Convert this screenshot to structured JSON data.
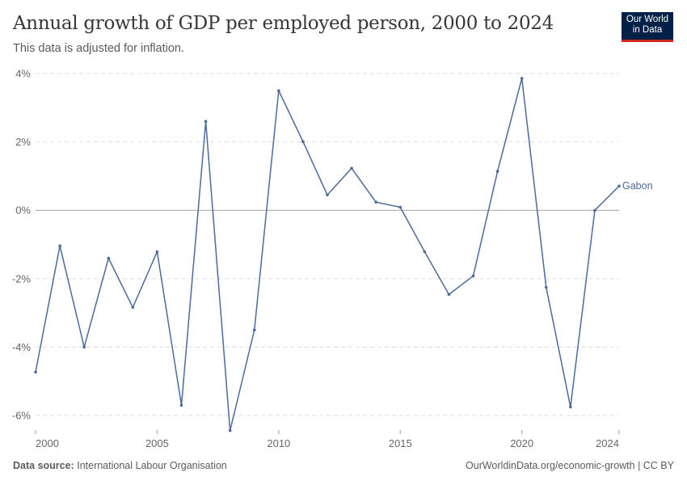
{
  "header": {
    "title": "Annual growth of GDP per employed person, 2000 to 2024",
    "subtitle": "This data is adjusted for inflation.",
    "logo": "Our World in Data"
  },
  "footer": {
    "source_label": "Data source:",
    "source": "International Labour Organisation",
    "url": "OurWorldinData.org/economic-growth | CC BY"
  },
  "chart_data": {
    "type": "line",
    "title": "Annual growth of GDP per employed person, 2000 to 2024",
    "subtitle": "This data is adjusted for inflation.",
    "xlabel": "",
    "ylabel": "",
    "xlim": [
      2000,
      2024
    ],
    "ylim": [
      -6.4,
      4
    ],
    "x_ticks": [
      2000,
      2005,
      2010,
      2015,
      2020,
      2024
    ],
    "y_ticks": [
      {
        "v": 4,
        "label": "4%"
      },
      {
        "v": 2,
        "label": "2%"
      },
      {
        "v": 0,
        "label": "0%"
      },
      {
        "v": -2,
        "label": "-2%"
      },
      {
        "v": -4,
        "label": "-4%"
      },
      {
        "v": -6,
        "label": "-6%"
      }
    ],
    "grid": true,
    "legend": "right-end-label",
    "series": [
      {
        "name": "Gabon",
        "color": "#4c6a9c",
        "x": [
          2000,
          2001,
          2002,
          2003,
          2004,
          2005,
          2006,
          2007,
          2008,
          2009,
          2010,
          2011,
          2012,
          2013,
          2014,
          2015,
          2016,
          2017,
          2018,
          2019,
          2020,
          2021,
          2022,
          2023,
          2024
        ],
        "values": [
          -4.73,
          -1.04,
          -4.0,
          -1.4,
          -2.84,
          -1.21,
          -5.7,
          2.6,
          -6.44,
          -3.5,
          3.5,
          2.01,
          0.45,
          1.23,
          0.24,
          0.09,
          -1.21,
          -2.46,
          -1.92,
          1.14,
          3.86,
          -2.25,
          -5.75,
          0.0,
          0.71
        ]
      }
    ]
  }
}
